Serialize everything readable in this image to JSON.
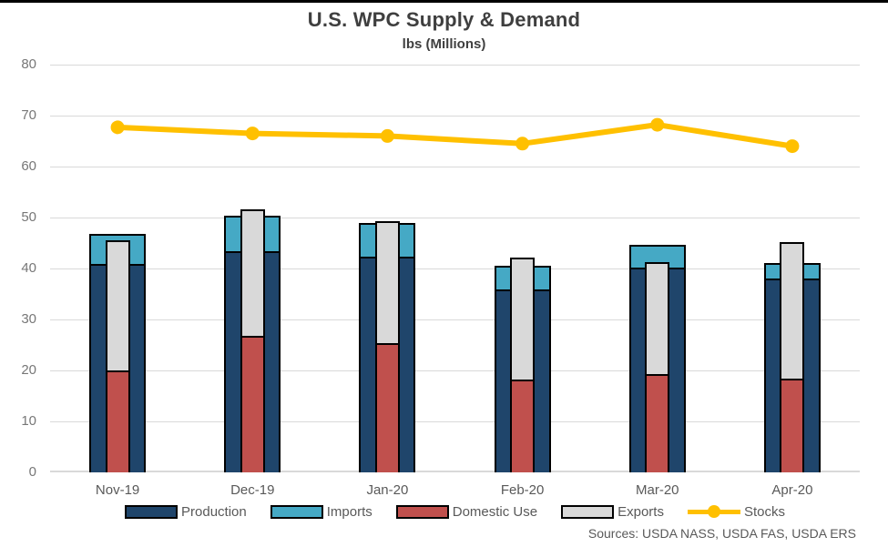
{
  "chart_data": {
    "type": "bar",
    "subtype": "overlapped stacked columns with line overlay",
    "title": "U.S. WPC Supply & Demand",
    "subtitle": "lbs (Millions)",
    "categories": [
      "Nov-19",
      "Dec-19",
      "Jan-20",
      "Feb-20",
      "Mar-20",
      "Apr-20"
    ],
    "ylim": [
      0,
      80
    ],
    "ytick_step": 10,
    "grid": true,
    "legend_position": "bottom",
    "bar_groups": [
      {
        "name": "supply",
        "style": "outer",
        "segments": [
          {
            "name": "Production",
            "color": "#1F456B",
            "values": [
              40.5,
              43.0,
              42.0,
              35.6,
              39.8,
              37.7
            ]
          },
          {
            "name": "Imports",
            "color": "#45A9C5",
            "values": [
              6.0,
              7.0,
              6.6,
              4.5,
              4.5,
              3.0
            ]
          }
        ]
      },
      {
        "name": "demand",
        "style": "inner",
        "segments": [
          {
            "name": "Domestic Use",
            "color": "#C0504D",
            "values": [
              19.7,
              26.4,
              25.0,
              17.8,
              19.0,
              18.0
            ]
          },
          {
            "name": "Exports",
            "color": "#D9D9D9",
            "values": [
              25.5,
              24.8,
              24.0,
              23.9,
              21.9,
              26.9
            ]
          }
        ]
      }
    ],
    "line_series": [
      {
        "name": "Stocks",
        "color": "#FFC000",
        "values": [
          67.7,
          66.5,
          66.0,
          64.5,
          68.2,
          64.0
        ]
      }
    ],
    "legend": [
      {
        "label": "Production",
        "swatch": "bar",
        "color": "#1F456B"
      },
      {
        "label": "Imports",
        "swatch": "bar",
        "color": "#45A9C5"
      },
      {
        "label": "Domestic Use",
        "swatch": "bar",
        "color": "#C0504D"
      },
      {
        "label": "Exports",
        "swatch": "bar",
        "color": "#D9D9D9"
      },
      {
        "label": "Stocks",
        "swatch": "line",
        "color": "#FFC000"
      }
    ]
  },
  "footer": {
    "sources": "Sources: USDA NASS, USDA FAS, USDA ERS"
  }
}
